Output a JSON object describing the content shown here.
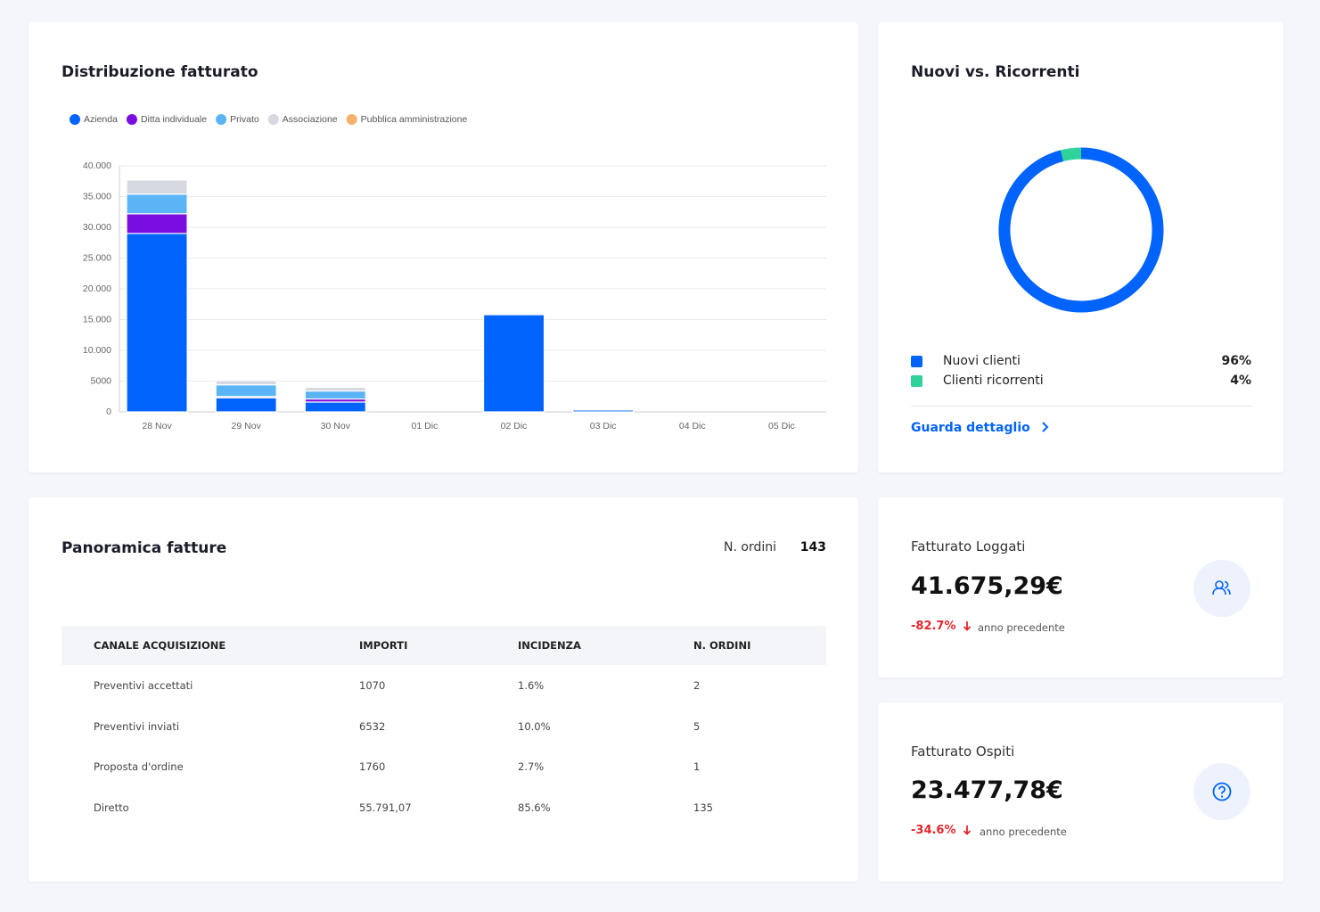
{
  "chart_data": [
    {
      "type": "bar",
      "stacked": true,
      "title": "Distribuzione fatturato",
      "categories": [
        "28 Nov",
        "29 Nov",
        "30 Nov",
        "01 Dic",
        "02 Dic",
        "03 Dic",
        "04 Dic",
        "05 Dic"
      ],
      "series": [
        {
          "name": "Azienda",
          "color": "#0063fc",
          "values": [
            29000,
            2300,
            1600,
            0,
            15800,
            300,
            0,
            0
          ]
        },
        {
          "name": "Ditta individuale",
          "color": "#7a0ee0",
          "values": [
            3200,
            200,
            500,
            0,
            0,
            0,
            0,
            0
          ]
        },
        {
          "name": "Privato",
          "color": "#5ab4f5",
          "values": [
            3200,
            1900,
            1300,
            0,
            0,
            0,
            0,
            0
          ]
        },
        {
          "name": "Associazione",
          "color": "#d7d9e2",
          "values": [
            2300,
            700,
            600,
            0,
            0,
            0,
            0,
            0
          ]
        },
        {
          "name": "Pubblica amministrazione",
          "color": "#f6b26b",
          "values": [
            0,
            0,
            0,
            0,
            0,
            0,
            0,
            0
          ]
        }
      ],
      "ylim": [
        0,
        40000
      ],
      "yticks": [
        0,
        5000,
        {
          "value": 10000,
          "label": "10.000"
        },
        {
          "value": 15000,
          "label": "15.000"
        },
        {
          "value": 20000,
          "label": "20.000"
        },
        {
          "value": 25000,
          "label": "25.000"
        },
        {
          "value": 30000,
          "label": "30.000"
        },
        {
          "value": 35000,
          "label": "35.000"
        },
        {
          "value": 40000,
          "label": "40.000"
        }
      ],
      "grid": true
    },
    {
      "type": "donut",
      "title": "Nuovi vs. Ricorrenti",
      "categories": [
        "Nuovi clienti",
        "Clienti ricorrenti"
      ],
      "values": [
        96,
        4
      ],
      "value_labels": [
        "96%",
        "4%"
      ],
      "colors": [
        "#0063fc",
        "#2fd39a"
      ],
      "link": "Guarda dettaglio"
    }
  ],
  "table": {
    "title": "Panoramica fatture",
    "orders_label": "N. ordini",
    "orders": "143",
    "headers": [
      "CANALE ACQUISIZIONE",
      "IMPORTI",
      "INCIDENZA",
      "N. ORDINI"
    ],
    "rows": [
      [
        "Preventivi accettati",
        "1070",
        "1.6%",
        "2"
      ],
      [
        "Preventivi inviati",
        "6532",
        "10.0%",
        "5"
      ],
      [
        "Proposta d'ordine",
        "1760",
        "2.7%",
        "1"
      ],
      [
        "Diretto",
        "55.791,07",
        "85.6%",
        "135"
      ]
    ]
  },
  "cards": [
    {
      "title": "Fatturato Loggati",
      "amount": "41.675,29€",
      "change": "-82.7%",
      "note": "anno precedente"
    },
    {
      "title": "Fatturato Ospiti",
      "amount": "23.477,78€",
      "change": "-34.6%",
      "note": "anno precedente"
    }
  ]
}
